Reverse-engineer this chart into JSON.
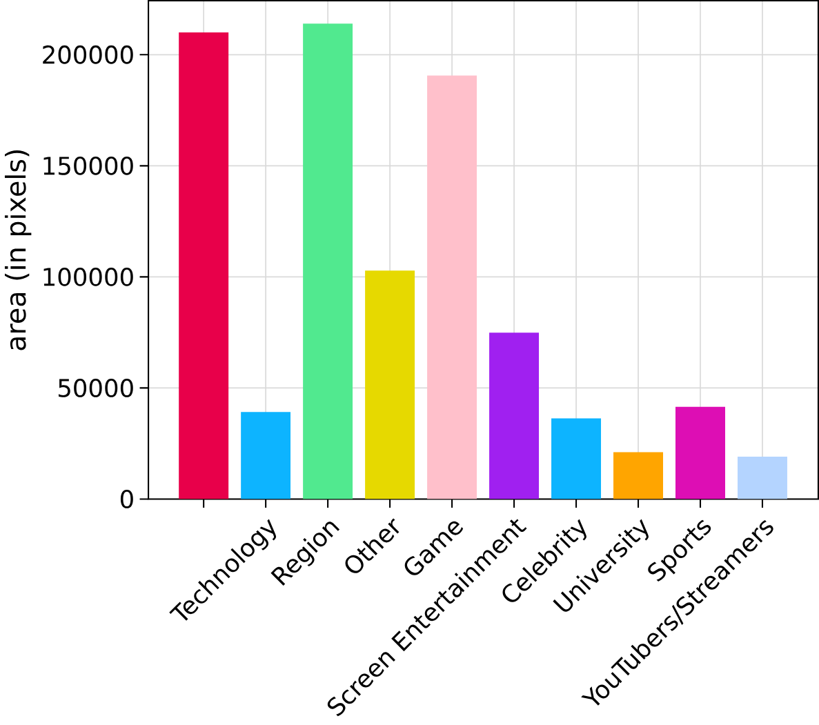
{
  "chart_data": {
    "type": "bar",
    "ylabel": "area (in pixels)",
    "categories": [
      null,
      "Technology",
      "Region",
      "Other",
      "Game",
      "Screen Entertainment",
      "Celebrity",
      "University",
      "Sports",
      "YouTubers/Streamers"
    ],
    "values": [
      210000,
      39200,
      214000,
      102800,
      190600,
      74900,
      36300,
      21100,
      41500,
      19100
    ],
    "colors": [
      "#e8004a",
      "#0db4ff",
      "#51e98f",
      "#e6d900",
      "#ffc0cb",
      "#a020f0",
      "#0db4ff",
      "#ffa500",
      "#dd0eb4",
      "#b4d4ff"
    ],
    "ylim": [
      0,
      224300
    ],
    "yticks": [
      0,
      50000,
      100000,
      150000,
      200000
    ],
    "grid": true
  }
}
